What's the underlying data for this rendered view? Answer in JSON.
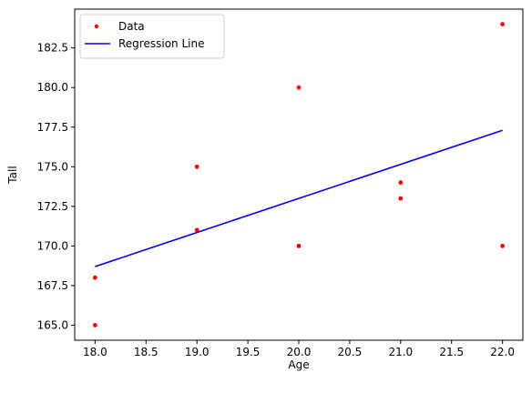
{
  "chart_data": {
    "type": "scatter",
    "title": "",
    "xlabel": "Age",
    "ylabel": "Tall",
    "xlim": [
      17.8,
      22.2
    ],
    "ylim": [
      164.05,
      184.95
    ],
    "xticks": [
      18.0,
      18.5,
      19.0,
      19.5,
      20.0,
      20.5,
      21.0,
      21.5,
      22.0
    ],
    "xtick_labels": [
      "18.0",
      "18.5",
      "19.0",
      "19.5",
      "20.0",
      "20.5",
      "21.0",
      "21.5",
      "22.0"
    ],
    "yticks": [
      165.0,
      167.5,
      170.0,
      172.5,
      175.0,
      177.5,
      180.0,
      182.5
    ],
    "ytick_labels": [
      "165.0",
      "167.5",
      "170.0",
      "172.5",
      "175.0",
      "177.5",
      "180.0",
      "182.5"
    ],
    "grid": false,
    "legend": {
      "position": "top-left",
      "entries": [
        {
          "label": "Data",
          "marker": "dot",
          "color": "#ff0000"
        },
        {
          "label": "Regression Line",
          "marker": "line",
          "color": "#0000ff"
        }
      ]
    },
    "series": [
      {
        "name": "Data",
        "kind": "points",
        "color": "#ff0000",
        "points": [
          {
            "x": 18,
            "y": 165
          },
          {
            "x": 18,
            "y": 168
          },
          {
            "x": 19,
            "y": 171
          },
          {
            "x": 19,
            "y": 175
          },
          {
            "x": 20,
            "y": 170
          },
          {
            "x": 20,
            "y": 180
          },
          {
            "x": 21,
            "y": 173
          },
          {
            "x": 21,
            "y": 174
          },
          {
            "x": 22,
            "y": 170
          },
          {
            "x": 22,
            "y": 184
          }
        ]
      },
      {
        "name": "Regression Line",
        "kind": "line",
        "color": "#0000ff",
        "points": [
          {
            "x": 18,
            "y": 168.7
          },
          {
            "x": 22,
            "y": 177.3
          }
        ]
      }
    ]
  }
}
